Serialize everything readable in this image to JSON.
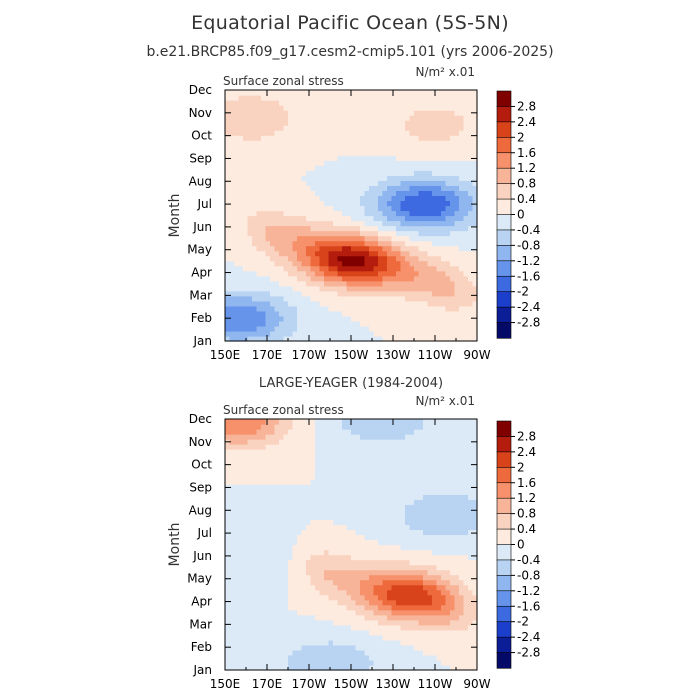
{
  "title": "Equatorial Pacific Ocean (5S-5N)",
  "subtitle": "b.e21.BRCP85.f09_g17.cesm2-cmip5.101 (yrs 2006-2025)",
  "chart_data": [
    {
      "type": "heatmap",
      "panel_title": "",
      "left_label": "Surface zonal stress",
      "right_label": "N/m² x.01",
      "xlabel": "",
      "ylabel": "Month",
      "x_tick_labels": [
        "150E",
        "170E",
        "170W",
        "150W",
        "130W",
        "110W",
        "90W"
      ],
      "x_ticks_lon": [
        150,
        170,
        190,
        210,
        230,
        250,
        270
      ],
      "xlim": [
        150,
        270
      ],
      "y_tick_labels": [
        "Jan",
        "Feb",
        "Mar",
        "Apr",
        "May",
        "Jun",
        "Jul",
        "Aug",
        "Sep",
        "Oct",
        "Nov",
        "Dec"
      ],
      "ylim": [
        1,
        12
      ],
      "colorbar_levels": [
        "2.8",
        "2.4",
        "2",
        "1.6",
        "1.2",
        "0.8",
        "0.4",
        "0",
        "-0.4",
        "-0.8",
        "-1.2",
        "-1.6",
        "-2",
        "-2.4",
        "-2.8"
      ],
      "colorbar_colors": [
        "#800000",
        "#b41d0d",
        "#d9431a",
        "#ee6a3d",
        "#f6916b",
        "#f8b498",
        "#fad3c0",
        "#fdebdf",
        "#dceaf7",
        "#b9d3f2",
        "#8fb6ef",
        "#6594ea",
        "#3d6ae0",
        "#1c3fcb",
        "#0b1e98",
        "#050a69"
      ],
      "features": [
        {
          "kind": "max",
          "value": 2.0,
          "lon": 210,
          "month": 4.5,
          "label": "easterly stress maximum, spring"
        },
        {
          "kind": "band",
          "value": 1.0,
          "lon_start": 165,
          "lon_end": 265,
          "month_start": 5.9,
          "month_end": 3.2,
          "label": "positive band descending eastward"
        },
        {
          "kind": "min",
          "value": -2.0,
          "lon": 245,
          "month": 7.0,
          "label": "negative anomaly, mid-year east Pacific"
        },
        {
          "kind": "min",
          "value": -1.6,
          "lon": 157,
          "month": 2.0,
          "label": "negative anomaly, Feb west Pacific"
        },
        {
          "kind": "max",
          "value": 0.8,
          "lon": 162,
          "month": 10.8,
          "label": "positive anomaly, Nov west Pacific"
        },
        {
          "kind": "max",
          "value": 0.6,
          "lon": 250,
          "month": 10.5,
          "label": "positive anomaly, autumn east Pacific"
        }
      ]
    },
    {
      "type": "heatmap",
      "panel_title": "LARGE-YEAGER (1984-2004)",
      "left_label": "Surface zonal stress",
      "right_label": "N/m² x.01",
      "xlabel": "",
      "ylabel": "Month",
      "x_tick_labels": [
        "150E",
        "170E",
        "170W",
        "150W",
        "130W",
        "110W",
        "90W"
      ],
      "x_ticks_lon": [
        150,
        170,
        190,
        210,
        230,
        250,
        270
      ],
      "xlim": [
        150,
        270
      ],
      "y_tick_labels": [
        "Jan",
        "Feb",
        "Mar",
        "Apr",
        "May",
        "Jun",
        "Jul",
        "Aug",
        "Sep",
        "Oct",
        "Nov",
        "Dec"
      ],
      "ylim": [
        1,
        12
      ],
      "colorbar_levels": [
        "2.8",
        "2.4",
        "2",
        "1.6",
        "1.2",
        "0.8",
        "0.4",
        "0",
        "-0.4",
        "-0.8",
        "-1.2",
        "-1.6",
        "-2",
        "-2.4",
        "-2.8"
      ],
      "colorbar_colors": [
        "#800000",
        "#b41d0d",
        "#d9431a",
        "#ee6a3d",
        "#f6916b",
        "#f8b498",
        "#fad3c0",
        "#fdebdf",
        "#dceaf7",
        "#b9d3f2",
        "#8fb6ef",
        "#6594ea",
        "#3d6ae0",
        "#1c3fcb",
        "#0b1e98",
        "#050a69"
      ],
      "features": [
        {
          "kind": "max",
          "value": 1.6,
          "lon": 238,
          "month": 4.3,
          "label": "positive maximum, Apr-May east-central Pacific"
        },
        {
          "kind": "band",
          "value": 0.8,
          "lon_start": 190,
          "lon_end": 265,
          "month_start": 5.5,
          "month_end": 3.5,
          "label": "positive spring band"
        },
        {
          "kind": "max",
          "value": 1.6,
          "lon": 157,
          "month": 11.9,
          "label": "positive anomaly, Dec west Pacific"
        },
        {
          "kind": "min",
          "value": -0.8,
          "lon": 225,
          "month": 12.0,
          "label": "negative anomaly, Dec central Pacific"
        },
        {
          "kind": "min",
          "value": -0.8,
          "lon": 255,
          "month": 7.8,
          "label": "negative anomaly, Jul-Aug east Pacific"
        },
        {
          "kind": "min",
          "value": -0.8,
          "lon": 200,
          "month": 1.3,
          "label": "negative anomaly, Jan central Pacific"
        },
        {
          "kind": "min",
          "value": -0.4,
          "lon": 155,
          "month": 6.5,
          "label": "weak negative anomaly, mid-year west Pacific"
        }
      ]
    }
  ]
}
